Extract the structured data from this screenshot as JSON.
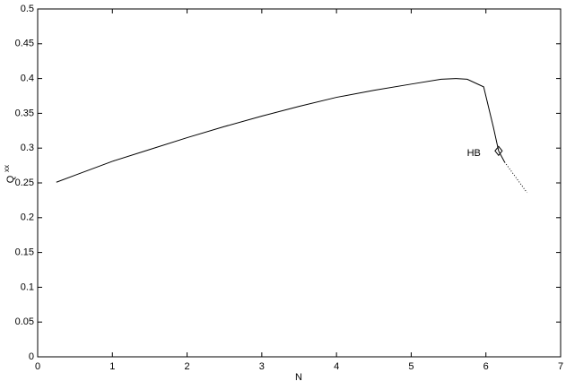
{
  "chart_data": {
    "type": "line",
    "xlabel": "N",
    "ylabel": "Q",
    "ylabel_superscript": "xx",
    "xlim": [
      0,
      7
    ],
    "xticks": [
      0,
      1,
      2,
      3,
      4,
      5,
      6,
      7
    ],
    "ylim": [
      0,
      0.5
    ],
    "yticks": [
      0,
      0.05,
      0.1,
      0.15,
      0.2,
      0.25,
      0.3,
      0.35,
      0.4,
      0.45,
      0.5
    ],
    "series": [
      {
        "style": "solid",
        "color": "#000000",
        "x": [
          0.25,
          0.5,
          1,
          1.5,
          2,
          2.5,
          3,
          3.5,
          4,
          4.5,
          5,
          5.4,
          5.6,
          5.75,
          5.97,
          6.1,
          6.17,
          6.25
        ],
        "values": [
          0.251,
          0.261,
          0.281,
          0.298,
          0.315,
          0.331,
          0.346,
          0.36,
          0.373,
          0.383,
          0.392,
          0.399,
          0.4,
          0.399,
          0.388,
          0.33,
          0.296,
          0.28
        ]
      },
      {
        "style": "dotted",
        "color": "#000000",
        "x": [
          6.25,
          6.4,
          6.55
        ],
        "values": [
          0.28,
          0.258,
          0.236
        ]
      }
    ],
    "points": [
      {
        "label": "HB",
        "x": 6.17,
        "y": 0.296
      }
    ]
  }
}
